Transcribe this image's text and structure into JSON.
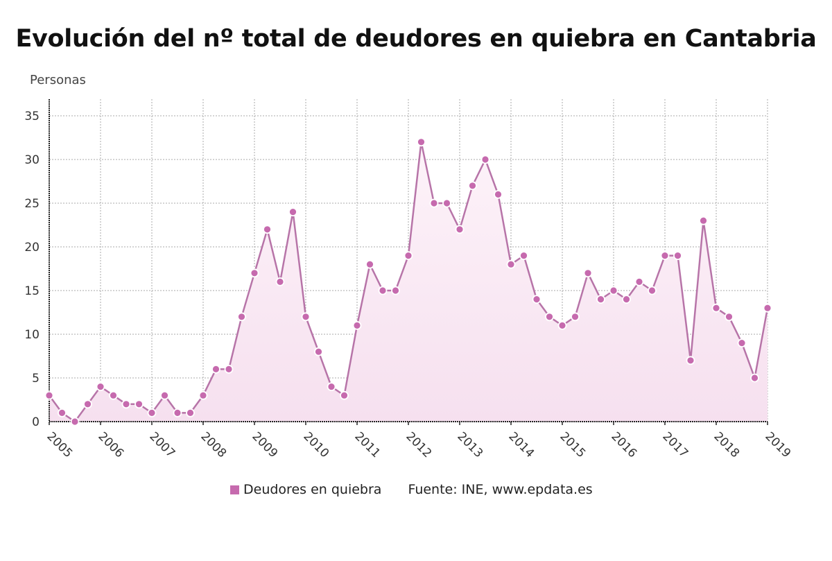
{
  "chart_data": {
    "type": "line",
    "title": "Evolución del nº total de deudores en quiebra en Cantabria",
    "ylabel": "Personas",
    "xlabel": "",
    "ylim": [
      0,
      35
    ],
    "yticks": [
      0,
      5,
      10,
      15,
      20,
      25,
      30,
      35
    ],
    "xticks": [
      "2005",
      "2006",
      "2007",
      "2008",
      "2009",
      "2010",
      "2011",
      "2012",
      "2013",
      "2014",
      "2015",
      "2016",
      "2017",
      "2018",
      "2019"
    ],
    "x_start_year": 2005,
    "x_step": "quarter",
    "grid": true,
    "legend_position": "bottom",
    "series": [
      {
        "name": "Deudores en quiebra",
        "color": "#c66aae",
        "values": [
          3,
          1,
          0,
          2,
          4,
          3,
          2,
          2,
          1,
          3,
          1,
          1,
          3,
          6,
          6,
          12,
          17,
          22,
          16,
          24,
          12,
          8,
          4,
          3,
          11,
          18,
          15,
          15,
          19,
          32,
          25,
          25,
          22,
          27,
          30,
          26,
          18,
          19,
          14,
          12,
          11,
          12,
          17,
          14,
          15,
          14,
          16,
          15,
          19,
          19,
          7,
          23,
          13,
          12,
          9,
          5,
          13
        ]
      }
    ],
    "source": "Fuente: INE, www.epdata.es"
  }
}
